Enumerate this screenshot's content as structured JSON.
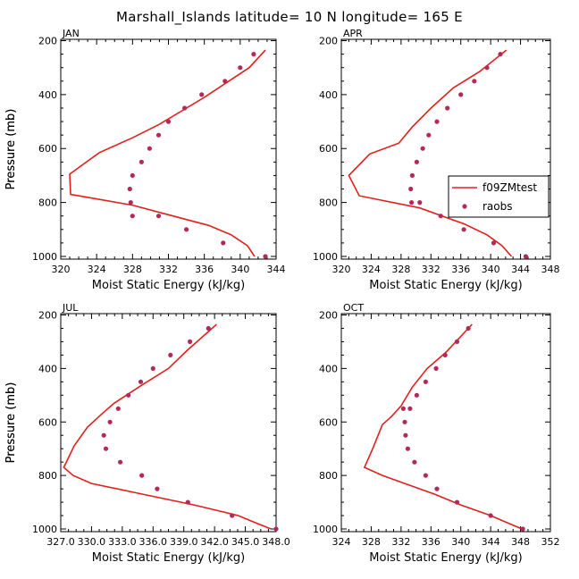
{
  "figure": {
    "title": "Marshall_Islands  latitude= 10 N longitude= 165 E"
  },
  "legend": {
    "model_label": "f09ZMtest",
    "obs_label": "raobs"
  },
  "colors": {
    "model": "#e0201c",
    "obs": "#b4285a"
  },
  "chart_data": [
    {
      "type": "line",
      "month": "JAN",
      "xlabel": "Moist Static Energy (kJ/kg)",
      "ylabel": "Pressure (mb)",
      "xlim": [
        320,
        344
      ],
      "ylim": [
        1010,
        195
      ],
      "xticks": [
        320,
        324,
        328,
        332,
        336,
        340,
        344
      ],
      "xtick_labels": [
        "320",
        "324",
        "328",
        "332",
        "336",
        "340",
        "344"
      ],
      "yticks": [
        200,
        400,
        600,
        800,
        1000
      ],
      "ytick_labels": [
        "200",
        "400",
        "600",
        "800",
        "1000"
      ],
      "series": [
        {
          "name": "f09ZMtest",
          "kind": "line",
          "x": [
            342.8,
            341.0,
            338.5,
            336.0,
            333.5,
            331.0,
            328.0,
            324.3,
            321.0,
            321.1,
            328.0,
            332.5,
            336.5,
            339.0,
            340.8,
            341.6
          ],
          "y": [
            235,
            300,
            355,
            410,
            460,
            510,
            560,
            615,
            695,
            770,
            810,
            850,
            885,
            920,
            960,
            1000
          ]
        },
        {
          "name": "raobs",
          "kind": "scatter",
          "x": [
            341.5,
            340.0,
            338.3,
            335.7,
            333.8,
            332.0,
            330.9,
            329.9,
            329.0,
            328.0,
            327.7,
            327.8,
            328.0,
            330.9,
            334.0,
            338.1,
            342.8
          ],
          "y": [
            250,
            300,
            350,
            400,
            450,
            500,
            550,
            600,
            650,
            700,
            750,
            800,
            850,
            850,
            900,
            950,
            1000
          ]
        }
      ]
    },
    {
      "type": "line",
      "month": "APR",
      "xlabel": "Moist Static Energy (kJ/kg)",
      "ylabel": "Pressure (mb)",
      "xlim": [
        320,
        348
      ],
      "ylim": [
        1010,
        195
      ],
      "xticks": [
        320,
        324,
        328,
        332,
        336,
        340,
        344,
        348
      ],
      "xtick_labels": [
        "320",
        "324",
        "328",
        "332",
        "336",
        "340",
        "344",
        "348"
      ],
      "yticks": [
        200,
        400,
        600,
        800,
        1000
      ],
      "ytick_labels": [
        "200",
        "400",
        "600",
        "800",
        "1000"
      ],
      "series": [
        {
          "name": "f09ZMtest",
          "kind": "line",
          "x": [
            342.1,
            338.5,
            335.0,
            332.0,
            329.5,
            327.7,
            323.8,
            321.0,
            322.4,
            330.5,
            333.5,
            336.5,
            339.5,
            341.5,
            342.8
          ],
          "y": [
            235,
            315,
            375,
            450,
            520,
            580,
            620,
            700,
            775,
            820,
            850,
            880,
            920,
            960,
            1000
          ]
        },
        {
          "name": "raobs",
          "kind": "scatter",
          "x": [
            341.3,
            339.5,
            337.8,
            336.0,
            334.2,
            332.8,
            331.7,
            330.9,
            330.1,
            329.5,
            329.3,
            329.4,
            330.5,
            333.3,
            336.4,
            340.4,
            344.7
          ],
          "y": [
            250,
            300,
            350,
            400,
            450,
            500,
            550,
            600,
            650,
            700,
            750,
            800,
            800,
            850,
            900,
            950,
            1000
          ]
        }
      ]
    },
    {
      "type": "line",
      "month": "JUL",
      "xlabel": "Moist Static Energy (kJ/kg)",
      "ylabel": "Pressure (mb)",
      "xlim": [
        327.0,
        348.0
      ],
      "ylim": [
        1010,
        195
      ],
      "xticks": [
        327.0,
        330.0,
        333.0,
        336.0,
        339.0,
        342.0,
        345.0,
        348.0
      ],
      "xtick_labels": [
        "327.0",
        "330.0",
        "333.0",
        "336.0",
        "339.0",
        "342.0",
        "345.0",
        "348.0"
      ],
      "yticks": [
        200,
        400,
        600,
        800,
        1000
      ],
      "ytick_labels": [
        "200",
        "400",
        "600",
        "800",
        "1000"
      ],
      "series": [
        {
          "name": "f09ZMtest",
          "kind": "line",
          "x": [
            342.2,
            339.4,
            337.5,
            335.0,
            332.2,
            331.0,
            329.6,
            328.3,
            327.3,
            328.2,
            330.0,
            335.0,
            340.0,
            344.3,
            346.2,
            347.5
          ],
          "y": [
            235,
            330,
            400,
            460,
            530,
            570,
            620,
            690,
            770,
            800,
            830,
            870,
            910,
            950,
            980,
            1000
          ]
        },
        {
          "name": "raobs",
          "kind": "scatter",
          "x": [
            341.4,
            339.6,
            337.7,
            336.0,
            334.8,
            333.6,
            332.6,
            331.8,
            331.2,
            331.4,
            332.8,
            334.9,
            336.4,
            339.4,
            343.7,
            348.0
          ],
          "y": [
            250,
            300,
            350,
            400,
            450,
            500,
            550,
            600,
            650,
            700,
            750,
            800,
            850,
            900,
            950,
            1000
          ]
        }
      ]
    },
    {
      "type": "line",
      "month": "OCT",
      "xlabel": "Moist Static Energy (kJ/kg)",
      "ylabel": "Pressure (mb)",
      "xlim": [
        324,
        352
      ],
      "ylim": [
        1010,
        195
      ],
      "xticks": [
        324,
        328,
        332,
        336,
        340,
        344,
        348,
        352
      ],
      "xtick_labels": [
        "324",
        "328",
        "332",
        "336",
        "340",
        "344",
        "348",
        "352"
      ],
      "yticks": [
        200,
        400,
        600,
        800,
        1000
      ],
      "ytick_labels": [
        "200",
        "400",
        "600",
        "800",
        "1000"
      ],
      "series": [
        {
          "name": "f09ZMtest",
          "kind": "line",
          "x": [
            341.5,
            338.0,
            335.5,
            333.5,
            332.0,
            330.7,
            329.5,
            328.2,
            327.1,
            329.5,
            332.5,
            336.5,
            340.0,
            344.0,
            346.5,
            348.2
          ],
          "y": [
            235,
            340,
            400,
            470,
            540,
            580,
            610,
            700,
            770,
            800,
            830,
            870,
            910,
            950,
            980,
            1000
          ]
        },
        {
          "name": "raobs",
          "kind": "scatter",
          "x": [
            341.0,
            339.5,
            337.9,
            336.7,
            335.3,
            334.1,
            333.2,
            332.3,
            332.5,
            332.6,
            332.9,
            333.8,
            335.3,
            336.8,
            339.5,
            344.0,
            348.3
          ],
          "y": [
            250,
            300,
            350,
            400,
            450,
            500,
            550,
            550,
            600,
            650,
            700,
            750,
            800,
            850,
            900,
            950,
            1000
          ]
        }
      ]
    }
  ]
}
